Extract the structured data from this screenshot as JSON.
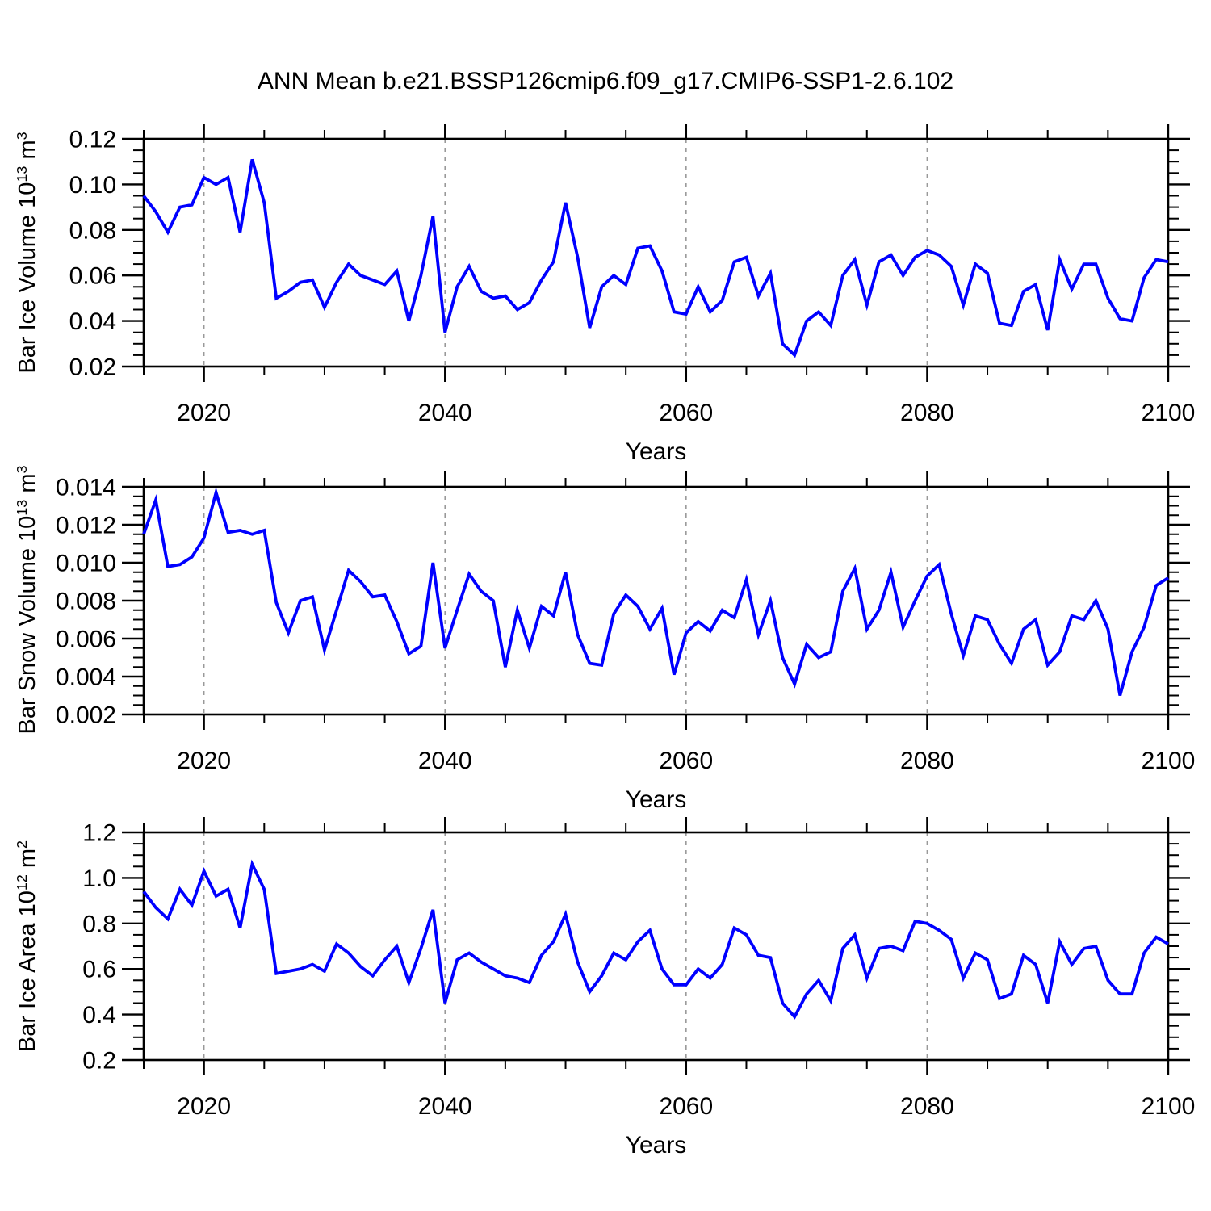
{
  "page": {
    "title": "ANN Mean b.e21.BSSP126cmip6.f09_g17.CMIP6-SSP1-2.6.102",
    "background": "#ffffff",
    "text_color": "#000000"
  },
  "style": {
    "line_color": "#0000ff",
    "grid_color": "#999999",
    "frame_color": "#000000"
  },
  "chart_data": [
    {
      "type": "line",
      "id": "ice-volume",
      "ylabel_prefix": "Bar Ice Volume 10",
      "ylabel_exp": "13",
      "ylabel_unit": " m",
      "ylabel_unit_exp": "3",
      "xlabel": "Years",
      "x_start": 2015,
      "x_end": 2100,
      "xticks": [
        2020,
        2040,
        2060,
        2080,
        2100
      ],
      "xtick_labels": [
        "2020",
        "2040",
        "2060",
        "2080",
        "2100"
      ],
      "xminor_step": 5,
      "grid_years": [
        2020,
        2040,
        2060,
        2080
      ],
      "ylim": [
        0.02,
        0.12
      ],
      "yticks": [
        0.02,
        0.04,
        0.06,
        0.08,
        0.1,
        0.12
      ],
      "ytick_labels": [
        "0.02",
        "0.04",
        "0.06",
        "0.08",
        "0.10",
        "0.12"
      ],
      "yminor_step": 0.005,
      "legend": "none",
      "grid": "x-dashed",
      "values": [
        0.095,
        0.088,
        0.079,
        0.09,
        0.091,
        0.103,
        0.1,
        0.103,
        0.079,
        0.111,
        0.092,
        0.05,
        0.053,
        0.057,
        0.058,
        0.046,
        0.057,
        0.065,
        0.06,
        0.058,
        0.056,
        0.062,
        0.04,
        0.06,
        0.086,
        0.035,
        0.055,
        0.064,
        0.053,
        0.05,
        0.051,
        0.045,
        0.048,
        0.058,
        0.066,
        0.092,
        0.068,
        0.037,
        0.055,
        0.06,
        0.056,
        0.072,
        0.073,
        0.062,
        0.044,
        0.043,
        0.055,
        0.044,
        0.049,
        0.066,
        0.068,
        0.051,
        0.061,
        0.03,
        0.025,
        0.04,
        0.044,
        0.038,
        0.06,
        0.067,
        0.047,
        0.066,
        0.069,
        0.06,
        0.068,
        0.071,
        0.069,
        0.064,
        0.047,
        0.065,
        0.061,
        0.039,
        0.038,
        0.053,
        0.056,
        0.036,
        0.067,
        0.054,
        0.065,
        0.065,
        0.05,
        0.041,
        0.04,
        0.059,
        0.067,
        0.066
      ]
    },
    {
      "type": "line",
      "id": "snow-volume",
      "ylabel_prefix": "Bar Snow Volume 10",
      "ylabel_exp": "13",
      "ylabel_unit": " m",
      "ylabel_unit_exp": "3",
      "xlabel": "Years",
      "x_start": 2015,
      "x_end": 2100,
      "xticks": [
        2020,
        2040,
        2060,
        2080,
        2100
      ],
      "xtick_labels": [
        "2020",
        "2040",
        "2060",
        "2080",
        "2100"
      ],
      "xminor_step": 5,
      "grid_years": [
        2020,
        2040,
        2060,
        2080
      ],
      "ylim": [
        0.002,
        0.014
      ],
      "yticks": [
        0.002,
        0.004,
        0.006,
        0.008,
        0.01,
        0.012,
        0.014
      ],
      "ytick_labels": [
        "0.002",
        "0.004",
        "0.006",
        "0.008",
        "0.010",
        "0.012",
        "0.014"
      ],
      "yminor_step": 0.0005,
      "legend": "none",
      "grid": "x-dashed",
      "values": [
        0.0115,
        0.0133,
        0.0098,
        0.0099,
        0.0103,
        0.0113,
        0.0137,
        0.0116,
        0.0117,
        0.0115,
        0.0117,
        0.0079,
        0.0063,
        0.008,
        0.0082,
        0.0054,
        0.0075,
        0.0096,
        0.009,
        0.0082,
        0.0083,
        0.0069,
        0.0052,
        0.0056,
        0.01,
        0.0055,
        0.0075,
        0.0094,
        0.0085,
        0.008,
        0.0045,
        0.0075,
        0.0055,
        0.0077,
        0.0072,
        0.0095,
        0.0062,
        0.0047,
        0.0046,
        0.0073,
        0.0083,
        0.0077,
        0.0065,
        0.0076,
        0.0041,
        0.0063,
        0.0069,
        0.0064,
        0.0075,
        0.0071,
        0.0091,
        0.0062,
        0.008,
        0.005,
        0.0036,
        0.0057,
        0.005,
        0.0053,
        0.0085,
        0.0097,
        0.0065,
        0.0075,
        0.0095,
        0.0066,
        0.008,
        0.0093,
        0.0099,
        0.0073,
        0.0051,
        0.0072,
        0.007,
        0.0057,
        0.0047,
        0.0065,
        0.007,
        0.0046,
        0.0053,
        0.0072,
        0.007,
        0.008,
        0.0065,
        0.003,
        0.0053,
        0.0066,
        0.0088,
        0.0092
      ]
    },
    {
      "type": "line",
      "id": "ice-area",
      "ylabel_prefix": "Bar Ice Area 10",
      "ylabel_exp": "12",
      "ylabel_unit": " m",
      "ylabel_unit_exp": "2",
      "xlabel": "Years",
      "x_start": 2015,
      "x_end": 2100,
      "xticks": [
        2020,
        2040,
        2060,
        2080,
        2100
      ],
      "xtick_labels": [
        "2020",
        "2040",
        "2060",
        "2080",
        "2100"
      ],
      "xminor_step": 5,
      "grid_years": [
        2020,
        2040,
        2060,
        2080
      ],
      "ylim": [
        0.2,
        1.2
      ],
      "yticks": [
        0.2,
        0.4,
        0.6,
        0.8,
        1.0,
        1.2
      ],
      "ytick_labels": [
        "0.2",
        "0.4",
        "0.6",
        "0.8",
        "1.0",
        "1.2"
      ],
      "yminor_step": 0.05,
      "legend": "none",
      "grid": "x-dashed",
      "values": [
        0.94,
        0.87,
        0.82,
        0.95,
        0.88,
        1.03,
        0.92,
        0.95,
        0.78,
        1.06,
        0.95,
        0.58,
        0.59,
        0.6,
        0.62,
        0.59,
        0.71,
        0.67,
        0.61,
        0.57,
        0.64,
        0.7,
        0.54,
        0.69,
        0.86,
        0.45,
        0.64,
        0.67,
        0.63,
        0.6,
        0.57,
        0.56,
        0.54,
        0.66,
        0.72,
        0.84,
        0.63,
        0.5,
        0.57,
        0.67,
        0.64,
        0.72,
        0.77,
        0.6,
        0.53,
        0.53,
        0.6,
        0.56,
        0.62,
        0.78,
        0.75,
        0.66,
        0.65,
        0.45,
        0.39,
        0.49,
        0.55,
        0.46,
        0.69,
        0.75,
        0.56,
        0.69,
        0.7,
        0.68,
        0.81,
        0.8,
        0.77,
        0.73,
        0.56,
        0.67,
        0.64,
        0.47,
        0.49,
        0.66,
        0.62,
        0.45,
        0.72,
        0.62,
        0.69,
        0.7,
        0.55,
        0.49,
        0.49,
        0.67,
        0.74,
        0.71
      ]
    }
  ]
}
